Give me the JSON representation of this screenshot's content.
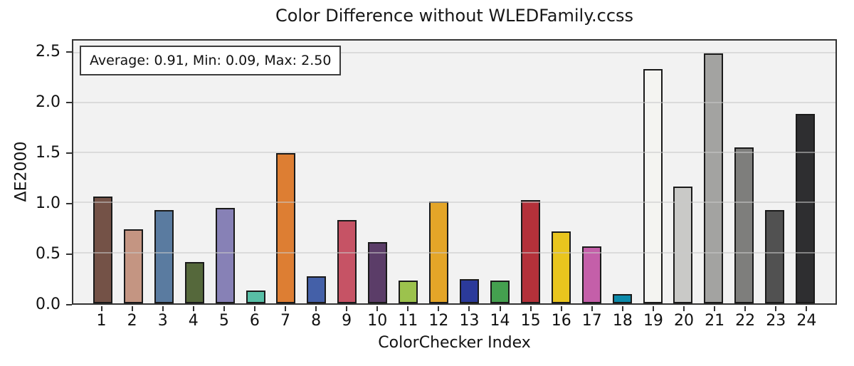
{
  "chart_data": {
    "type": "bar",
    "title": "Color Difference without WLEDFamily.ccss",
    "xlabel": "ColorChecker Index",
    "ylabel": "ΔE2000",
    "annotation": "Average: 0.91, Min: 0.09, Max: 2.50",
    "stats": {
      "average": 0.91,
      "min": 0.09,
      "max": 2.5
    },
    "categories": [
      "1",
      "2",
      "3",
      "4",
      "5",
      "6",
      "7",
      "8",
      "9",
      "10",
      "11",
      "12",
      "13",
      "14",
      "15",
      "16",
      "17",
      "18",
      "19",
      "20",
      "21",
      "22",
      "23",
      "24"
    ],
    "values": [
      1.07,
      0.74,
      0.93,
      0.41,
      0.95,
      0.13,
      1.5,
      0.27,
      0.83,
      0.61,
      0.23,
      1.02,
      0.24,
      0.23,
      1.03,
      0.72,
      0.57,
      0.09,
      2.34,
      1.17,
      2.5,
      1.56,
      0.93,
      1.89
    ],
    "bar_colors": [
      "#745247",
      "#c49582",
      "#5a7ba0",
      "#55683b",
      "#8781b6",
      "#58bfa6",
      "#dd7e33",
      "#4460a8",
      "#c65365",
      "#5b3d68",
      "#9cc24d",
      "#e4a528",
      "#2b3a9a",
      "#44a04f",
      "#b4313a",
      "#e9c51e",
      "#c45fa9",
      "#0d8bab",
      "#f4f4f1",
      "#c9c9c7",
      "#a3a3a1",
      "#7e7e7c",
      "#515151",
      "#2e2e30"
    ],
    "ytick_labels": [
      "0.0",
      "0.5",
      "1.0",
      "1.5",
      "2.0",
      "2.5"
    ],
    "ytick_values": [
      0,
      0.5,
      1.0,
      1.5,
      2.0,
      2.5
    ],
    "ylim": [
      0,
      2.625
    ],
    "grid": "horizontal-only",
    "legend_position": "none",
    "colors": {
      "plot_bg": "#f2f2f2",
      "figure_bg": "#ffffff",
      "gridline": "#c8c8c8",
      "spine": "#333333",
      "bar_edge": "#1a1a1a",
      "annotation_bg": "#ffffff",
      "annotation_border": "#3c3c3c",
      "text": "#111111"
    }
  }
}
